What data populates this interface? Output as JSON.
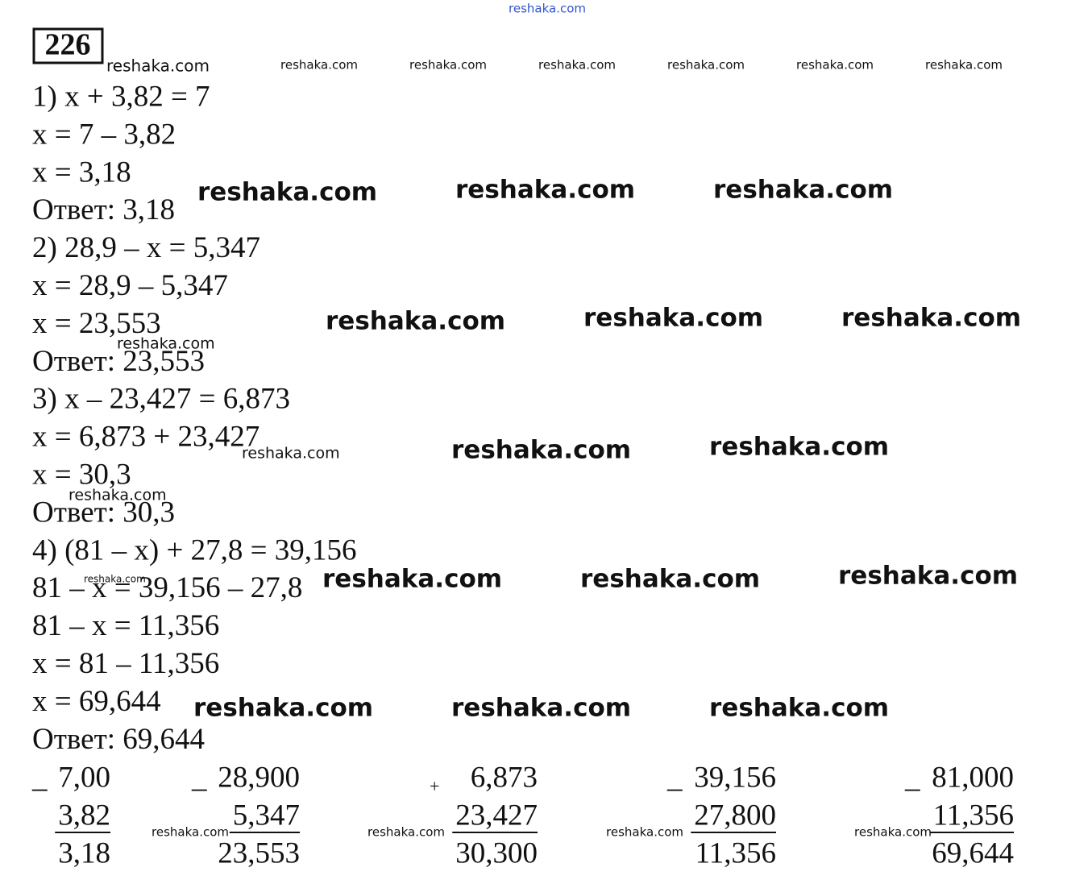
{
  "header": {
    "site": "reshaka.com",
    "number": "226"
  },
  "lines": [
    "1)  x + 3,82 = 7",
    "x = 7 – 3,82",
    "x = 3,18",
    "Ответ: 3,18",
    "2) 28,9 – x = 5,347",
    "x = 28,9 – 5,347",
    "x = 23,553",
    "Ответ: 23,553",
    "3) x – 23,427 = 6,873",
    "x = 6,873 + 23,427",
    "x = 30,3",
    "Ответ: 30,3",
    "4) (81 – x) + 27,8 = 39,156",
    "81 – x = 39,156 – 27,8",
    "81 – x = 11,356",
    "x = 81 – 11,356",
    "x = 69,644",
    "Ответ: 69,644"
  ],
  "columns": [
    {
      "op": "_",
      "top": "7,00",
      "bottom": "3,82",
      "result": "3,18"
    },
    {
      "op": "_",
      "top": "28,900",
      "bottom": "5,347",
      "result": "23,553"
    },
    {
      "op": "+",
      "top": "6,873",
      "bottom": "23,427",
      "result": "30,300"
    },
    {
      "op": "_",
      "top": "39,156",
      "bottom": "27,800",
      "result": "11,356"
    },
    {
      "op": "_",
      "top": "81,000",
      "bottom": "11,356",
      "result": "69,644"
    }
  ],
  "watermarks": [
    "reshaka.com",
    "reshaka.com",
    "reshaka.com",
    "reshaka.com",
    "reshaka.com",
    "reshaka.com",
    "reshaka.com",
    "reshaka.com",
    "reshaka.com",
    "reshaka.com",
    "reshaka.com",
    "reshaka.com",
    "reshaka.com",
    "reshaka.com",
    "reshaka.com",
    "reshaka.com",
    "reshaka.com",
    "reshaka.com",
    "reshaka.com",
    "reshaka.com",
    "reshaka.com",
    "reshaka.com",
    "reshaka.com",
    "reshaka.com",
    "reshaka.com",
    "reshaka.com",
    "reshaka.com",
    "reshaka.com",
    "reshaka.com"
  ]
}
